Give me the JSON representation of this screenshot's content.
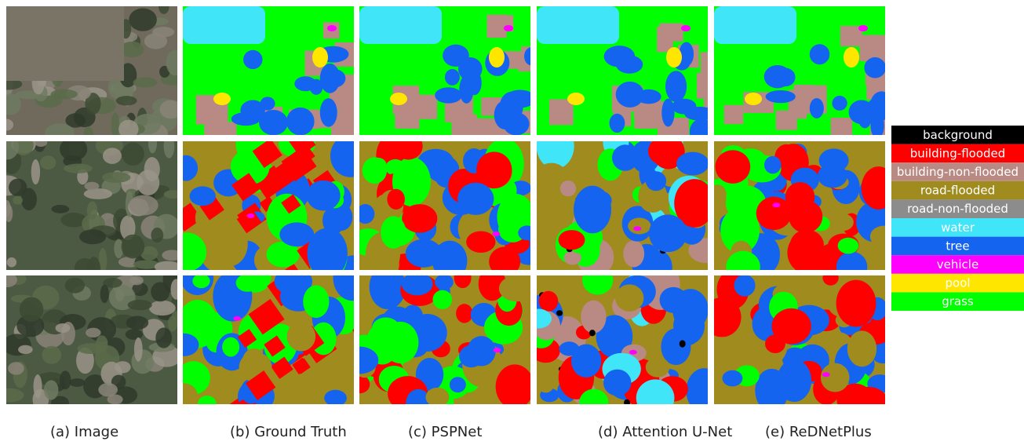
{
  "columns": [
    "(a) Image",
    "(b) Ground Truth",
    "(c) PSPNet",
    "(d) Attention U-Net",
    "(e) ReDNetPlus"
  ],
  "legend": [
    {
      "label": "background",
      "color": "#000000"
    },
    {
      "label": "building-flooded",
      "color": "#ff0000"
    },
    {
      "label": "building-non-flooded",
      "color": "#b98a84"
    },
    {
      "label": "road-flooded",
      "color": "#a08b1e"
    },
    {
      "label": "road-non-flooded",
      "color": "#8c8c8c"
    },
    {
      "label": "water",
      "color": "#40e6f8"
    },
    {
      "label": "tree",
      "color": "#1464f0"
    },
    {
      "label": "vehicle",
      "color": "#ff00ff"
    },
    {
      "label": "pool",
      "color": "#ffe600"
    },
    {
      "label": "grass",
      "color": "#00ff00"
    }
  ]
}
